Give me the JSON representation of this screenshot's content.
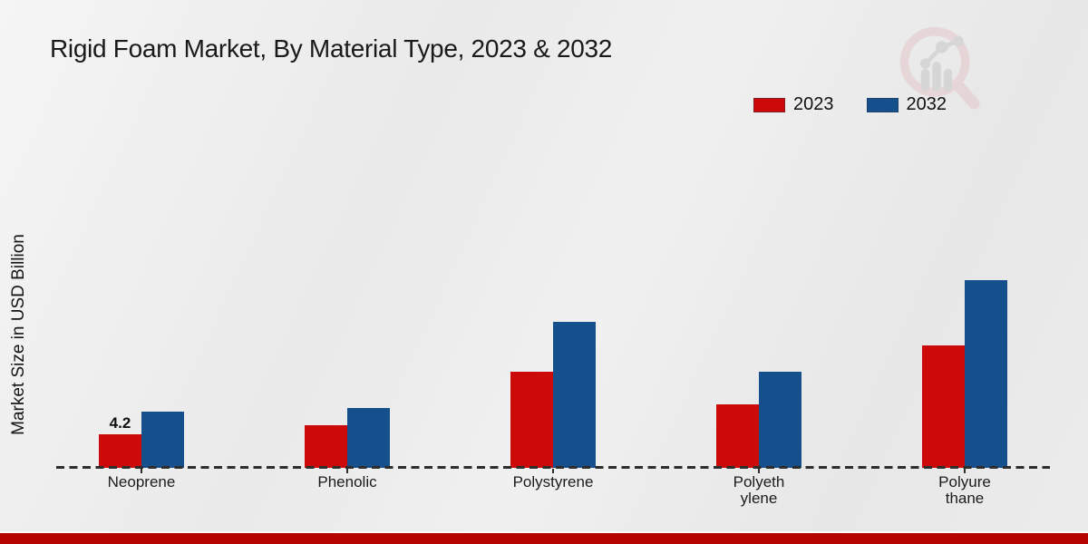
{
  "page": {
    "title": "Rigid Foam Market, By Material Type, 2023 & 2032",
    "ylabel": "Market Size in USD Billion"
  },
  "colors": {
    "bar_2023": "#cc0a0a",
    "bar_2032": "#15508c",
    "footer": "#b50500",
    "axis": "#2d2d2d",
    "watermark_ring": "#e3c6ca",
    "watermark_bars": "#c6c6c6"
  },
  "chart_data": {
    "type": "bar",
    "title": "Rigid Foam Market, By Material Type, 2023 & 2032",
    "xlabel": "",
    "ylabel": "Market Size in USD Billion",
    "categories": [
      "Neoprene",
      "Phenolic",
      "Polystyrene",
      "Polyeth\nylene",
      "Polyure\nthane"
    ],
    "series": [
      {
        "name": "2023",
        "color": "#cc0a0a",
        "values": [
          4.2,
          5.3,
          12.0,
          7.9,
          15.3
        ]
      },
      {
        "name": "2032",
        "color": "#15508c",
        "values": [
          7.0,
          7.5,
          18.3,
          12.0,
          23.5
        ]
      }
    ],
    "data_labels": [
      {
        "series_index": 0,
        "category_index": 0,
        "text": "4.2"
      }
    ],
    "ylim": [
      0,
      25
    ],
    "grid": false,
    "legend_position": "top-right",
    "baseline_style": "dashed",
    "y_axis_ticks_visible": false
  }
}
